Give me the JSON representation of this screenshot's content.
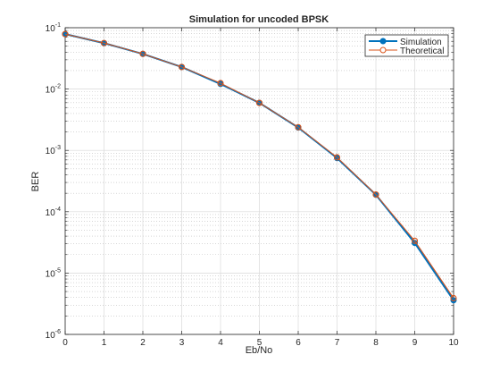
{
  "chart_data": {
    "type": "line",
    "title": "Simulation for uncoded BPSK",
    "xlabel": "Eb/No",
    "ylabel": "BER",
    "xlim": [
      0,
      10
    ],
    "ylim": [
      1e-06,
      0.1
    ],
    "yscale": "log",
    "grid": true,
    "minor_grid": true,
    "legend_position": "top-right",
    "x": [
      0,
      1,
      2,
      3,
      4,
      5,
      6,
      7,
      8,
      9,
      10
    ],
    "x_tick_labels": [
      "0",
      "1",
      "2",
      "3",
      "4",
      "5",
      "6",
      "7",
      "8",
      "9",
      "10"
    ],
    "y_ticks": [
      {
        "base": "10",
        "exp": "-1"
      },
      {
        "base": "10",
        "exp": "-2"
      },
      {
        "base": "10",
        "exp": "-3"
      },
      {
        "base": "10",
        "exp": "-4"
      },
      {
        "base": "10",
        "exp": "-5"
      },
      {
        "base": "10",
        "exp": "-6"
      }
    ],
    "series": [
      {
        "name": "Simulation",
        "color": "#0072bd",
        "marker": "filled-circle",
        "values": [
          0.0787,
          0.0561,
          0.0374,
          0.0229,
          0.0121,
          0.00595,
          0.00236,
          0.00075,
          0.000189,
          3.1e-05,
          3.6e-06
        ]
      },
      {
        "name": "Theoretical",
        "color": "#d95319",
        "marker": "open-circle",
        "values": [
          0.0786,
          0.0563,
          0.0375,
          0.0229,
          0.0125,
          0.00595,
          0.00239,
          0.00077,
          0.000191,
          3.36e-05,
          3.9e-06
        ]
      }
    ]
  }
}
